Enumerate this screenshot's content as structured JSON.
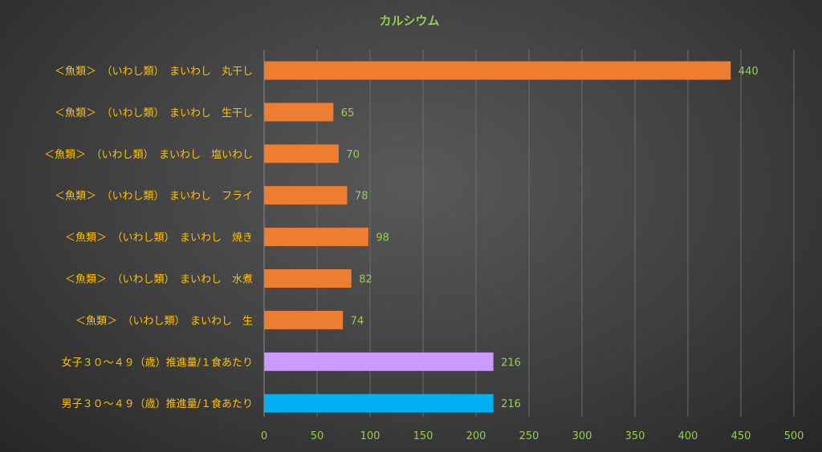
{
  "chart_data": {
    "type": "bar",
    "orientation": "horizontal",
    "title": "カルシウム",
    "xlim": [
      0,
      500
    ],
    "xticks": [
      0,
      50,
      100,
      150,
      200,
      250,
      300,
      350,
      400,
      450,
      500
    ],
    "grid": true,
    "categories": [
      "＜魚類＞　（いわし類）　まいわし　丸干し",
      "＜魚類＞　（いわし類）　まいわし　生干し",
      "＜魚類＞　（いわし類）　まいわし　塩いわし",
      "＜魚類＞　（いわし類）　まいわし　フライ",
      "＜魚類＞　（いわし類）　まいわし　焼き",
      "＜魚類＞　（いわし類）　まいわし　水煮",
      "＜魚類＞　（いわし類）　まいわし　生",
      "女子３０～４９（歳）推進量/１食あたり",
      "男子３０～４９（歳）推進量/１食あたり"
    ],
    "values": [
      440,
      65,
      70,
      78,
      98,
      82,
      74,
      216,
      216
    ],
    "data_labels": [
      "440",
      "65",
      "70",
      "78",
      "98",
      "82",
      "74",
      "216",
      "216"
    ],
    "bar_colors": [
      "#ed7d31",
      "#ed7d31",
      "#ed7d31",
      "#ed7d31",
      "#ed7d31",
      "#ed7d31",
      "#ed7d31",
      "#cc99ff",
      "#00b0f0"
    ]
  },
  "colors": {
    "title": "#92d050",
    "category_label": "#ffc000",
    "tick_label": "#92d050",
    "data_label": "#92d050",
    "gridline": "#6e6e6e",
    "axis_line": "#8a8a8a"
  }
}
